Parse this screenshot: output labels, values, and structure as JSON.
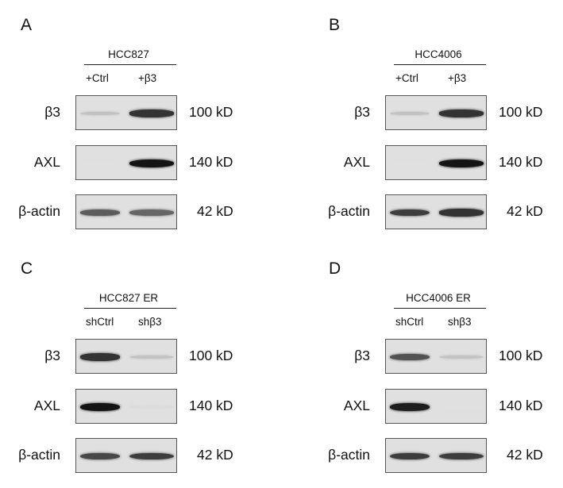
{
  "panels": [
    {
      "letter": "A",
      "cell_line": "HCC827",
      "lanes": [
        "+Ctrl",
        "+β3"
      ],
      "rows": [
        {
          "label": "β3",
          "kd": "100 kD",
          "bands": [
            0.15,
            0.85
          ]
        },
        {
          "label": "AXL",
          "kd": "140 kD",
          "bands": [
            0.0,
            1.0
          ]
        },
        {
          "label": "β-actin",
          "kd": "42 kD",
          "bands": [
            0.65,
            0.6
          ]
        }
      ]
    },
    {
      "letter": "B",
      "cell_line": "HCC4006",
      "lanes": [
        "+Ctrl",
        "+β3"
      ],
      "rows": [
        {
          "label": "β3",
          "kd": "100 kD",
          "bands": [
            0.15,
            0.85
          ]
        },
        {
          "label": "AXL",
          "kd": "140 kD",
          "bands": [
            0.0,
            1.0
          ]
        },
        {
          "label": "β-actin",
          "kd": "42 kD",
          "bands": [
            0.8,
            0.85
          ]
        }
      ]
    },
    {
      "letter": "C",
      "cell_line": "HCC827 ER",
      "lanes": [
        "shCtrl",
        "shβ3"
      ],
      "rows": [
        {
          "label": "β3",
          "kd": "100 kD",
          "bands": [
            0.85,
            0.15
          ]
        },
        {
          "label": "AXL",
          "kd": "140 kD",
          "bands": [
            1.0,
            0.03
          ]
        },
        {
          "label": "β-actin",
          "kd": "42 kD",
          "bands": [
            0.75,
            0.8
          ]
        }
      ]
    },
    {
      "letter": "D",
      "cell_line": "HCC4006 ER",
      "lanes": [
        "shCtrl",
        "shβ3"
      ],
      "rows": [
        {
          "label": "β3",
          "kd": "100 kD",
          "bands": [
            0.7,
            0.15
          ]
        },
        {
          "label": "AXL",
          "kd": "140 kD",
          "bands": [
            0.95,
            0.0
          ]
        },
        {
          "label": "β-actin",
          "kd": "42 kD",
          "bands": [
            0.8,
            0.8
          ]
        }
      ]
    }
  ]
}
